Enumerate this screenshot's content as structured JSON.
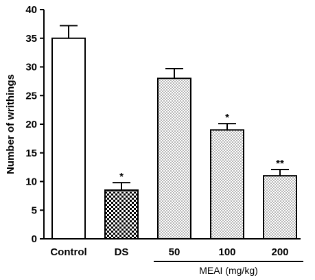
{
  "chart_data": {
    "type": "bar",
    "categories": [
      "Control",
      "DS",
      "50",
      "100",
      "200"
    ],
    "values": [
      35,
      8.5,
      28,
      19,
      11
    ],
    "errors": [
      2.2,
      1.3,
      1.7,
      1.1,
      1.1
    ],
    "significance": [
      "",
      "*",
      "",
      "*",
      "**"
    ],
    "patterns": [
      "white",
      "checker",
      "dots",
      "dots",
      "dots"
    ],
    "ylabel": "Number of writhings",
    "ylim": [
      0,
      40
    ],
    "yticks": [
      0,
      5,
      10,
      15,
      20,
      25,
      30,
      35,
      40
    ],
    "group_label": "MEAI (mg/kg)",
    "group_categories": [
      "50",
      "100",
      "200"
    ],
    "grid": false,
    "colors": {
      "bar_stroke": "#000000",
      "dots": "#000000",
      "fill": "#ffffff"
    }
  }
}
